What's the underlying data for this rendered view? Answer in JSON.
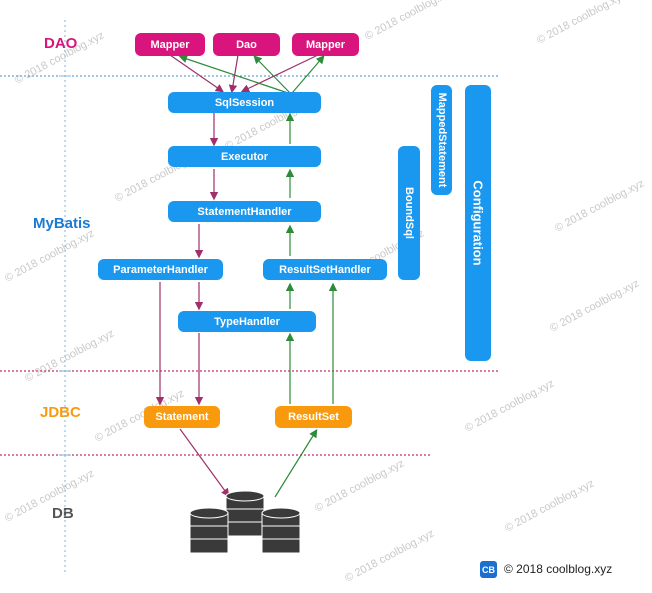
{
  "layers": {
    "dao": "DAO",
    "mybatis": "MyBatis",
    "jdbc": "JDBC",
    "db": "DB"
  },
  "boxes": {
    "mapper_left": "Mapper",
    "dao": "Dao",
    "mapper_right": "Mapper",
    "sqlsession": "SqlSession",
    "executor": "Executor",
    "statement_handler": "StatementHandler",
    "parameter_handler": "ParameterHandler",
    "resultset_handler": "ResultSetHandler",
    "type_handler": "TypeHandler",
    "statement": "Statement",
    "resultset": "ResultSet",
    "bound_sql": "BoundSql",
    "mapped_statement": "MappedStatement",
    "configuration": "Configuration"
  },
  "watermark": "© 2018 coolblog.xyz",
  "footer": {
    "icon_text": "CB",
    "copyright": "© 2018 coolblog.xyz"
  },
  "colors": {
    "dao_pink": "#d9157d",
    "mybatis_blue": "#1a97ef",
    "jdbc_orange": "#f99a0e",
    "db_gray": "#555555",
    "arrow_purple": "#a0306a",
    "arrow_green": "#2e8b3a"
  }
}
